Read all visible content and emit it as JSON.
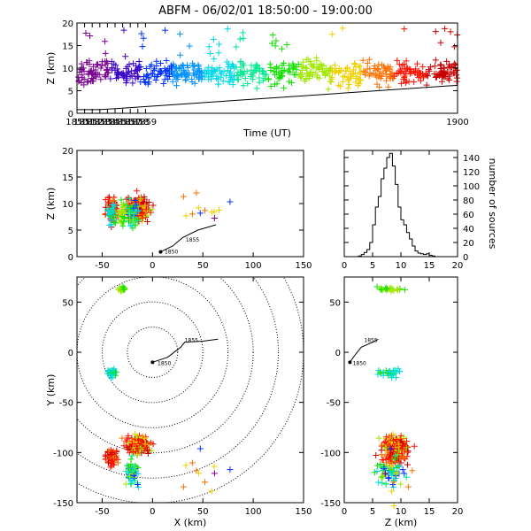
{
  "title": "ABFM - 06/02/01 18:50:00 - 19:00:00",
  "palette": [
    "#7a0090",
    "#3a00c8",
    "#0030ff",
    "#0090ff",
    "#00d8e8",
    "#00e890",
    "#10e000",
    "#a0e800",
    "#f0d000",
    "#ff7000",
    "#ff1000",
    "#c80000"
  ],
  "chart_data": [
    {
      "id": "time-height",
      "type": "scatter",
      "xlabel": "Time (UT)",
      "ylabel": "Z (km)",
      "xlim": [
        1850,
        1900
      ],
      "ylim": [
        0,
        20
      ],
      "xticks": [
        "1850",
        "1851",
        "1852",
        "1853",
        "1854",
        "1855",
        "1856",
        "1857",
        "1858",
        "1859",
        "1900"
      ],
      "yticks": [
        "0",
        "5",
        "10",
        "15",
        "20"
      ],
      "track_line": {
        "x": [
          1850,
          1853,
          1900
        ],
        "y": [
          0.8,
          0.8,
          6.2
        ]
      },
      "source_height_band_km": [
        5,
        12
      ]
    },
    {
      "id": "x-height",
      "type": "scatter",
      "xlabel": "",
      "ylabel": "Z (km)",
      "xlim": [
        -75,
        150
      ],
      "ylim": [
        0,
        20
      ],
      "xticks": [
        "-50",
        "0",
        "50",
        "100",
        "150"
      ],
      "yticks": [
        "0",
        "5",
        "10",
        "15",
        "20"
      ],
      "track": {
        "x": [
          8,
          20,
          30,
          45,
          63
        ],
        "y": [
          0.9,
          2.0,
          3.6,
          5.0,
          6.0
        ]
      },
      "track_labels": [
        {
          "text": "1850",
          "x": 12,
          "y": 0.9
        },
        {
          "text": "1855",
          "x": 33,
          "y": 3.2
        }
      ]
    },
    {
      "id": "height-histogram",
      "type": "histogram",
      "xlabel": "",
      "ylabel": "number of sources",
      "xlim": [
        0,
        20
      ],
      "ylim": [
        0,
        150
      ],
      "xticks": [
        "0",
        "5",
        "10",
        "15",
        "20"
      ],
      "yticks": [
        "0",
        "20",
        "40",
        "60",
        "80",
        "100",
        "120",
        "140"
      ],
      "bin_width_km": 0.5,
      "counts": [
        0,
        0,
        0,
        0,
        0,
        1,
        3,
        6,
        10,
        20,
        45,
        70,
        85,
        110,
        125,
        140,
        146,
        128,
        102,
        70,
        52,
        45,
        34,
        25,
        15,
        8,
        5,
        4,
        3,
        4,
        2,
        1,
        0,
        0,
        0,
        0,
        0,
        0,
        0,
        0
      ]
    },
    {
      "id": "plan-view",
      "type": "scatter",
      "xlabel": "X (km)",
      "ylabel": "Y (km)",
      "xlim": [
        -75,
        150
      ],
      "ylim": [
        -150,
        75
      ],
      "xticks": [
        "-50",
        "0",
        "50",
        "100",
        "150"
      ],
      "yticks": [
        "-150",
        "-100",
        "-50",
        "0",
        "50"
      ],
      "range_rings_km": [
        25,
        50,
        75,
        100,
        125,
        150
      ],
      "track": {
        "x": [
          0,
          15,
          28,
          32,
          50,
          65
        ],
        "y": [
          -10,
          -5,
          5,
          10,
          11,
          13
        ]
      },
      "track_labels": [
        {
          "text": "1850",
          "x": 5,
          "y": -11
        },
        {
          "text": "1855",
          "x": 32,
          "y": 12
        }
      ]
    },
    {
      "id": "height-y",
      "type": "scatter",
      "xlabel": "Z (km)",
      "ylabel": "",
      "xlim": [
        0,
        20
      ],
      "ylim": [
        -150,
        75
      ],
      "xticks": [
        "0",
        "5",
        "10",
        "15",
        "20"
      ],
      "yticks": [
        "-150",
        "-100",
        "-50",
        "0",
        "50"
      ],
      "track": {
        "x": [
          1,
          2,
          3,
          5,
          6
        ],
        "y": [
          -10,
          -2,
          5,
          10,
          13
        ]
      },
      "track_labels": [
        {
          "text": "1850",
          "x": 1.5,
          "y": -11
        },
        {
          "text": "1855",
          "x": 3.5,
          "y": 12
        }
      ]
    }
  ]
}
